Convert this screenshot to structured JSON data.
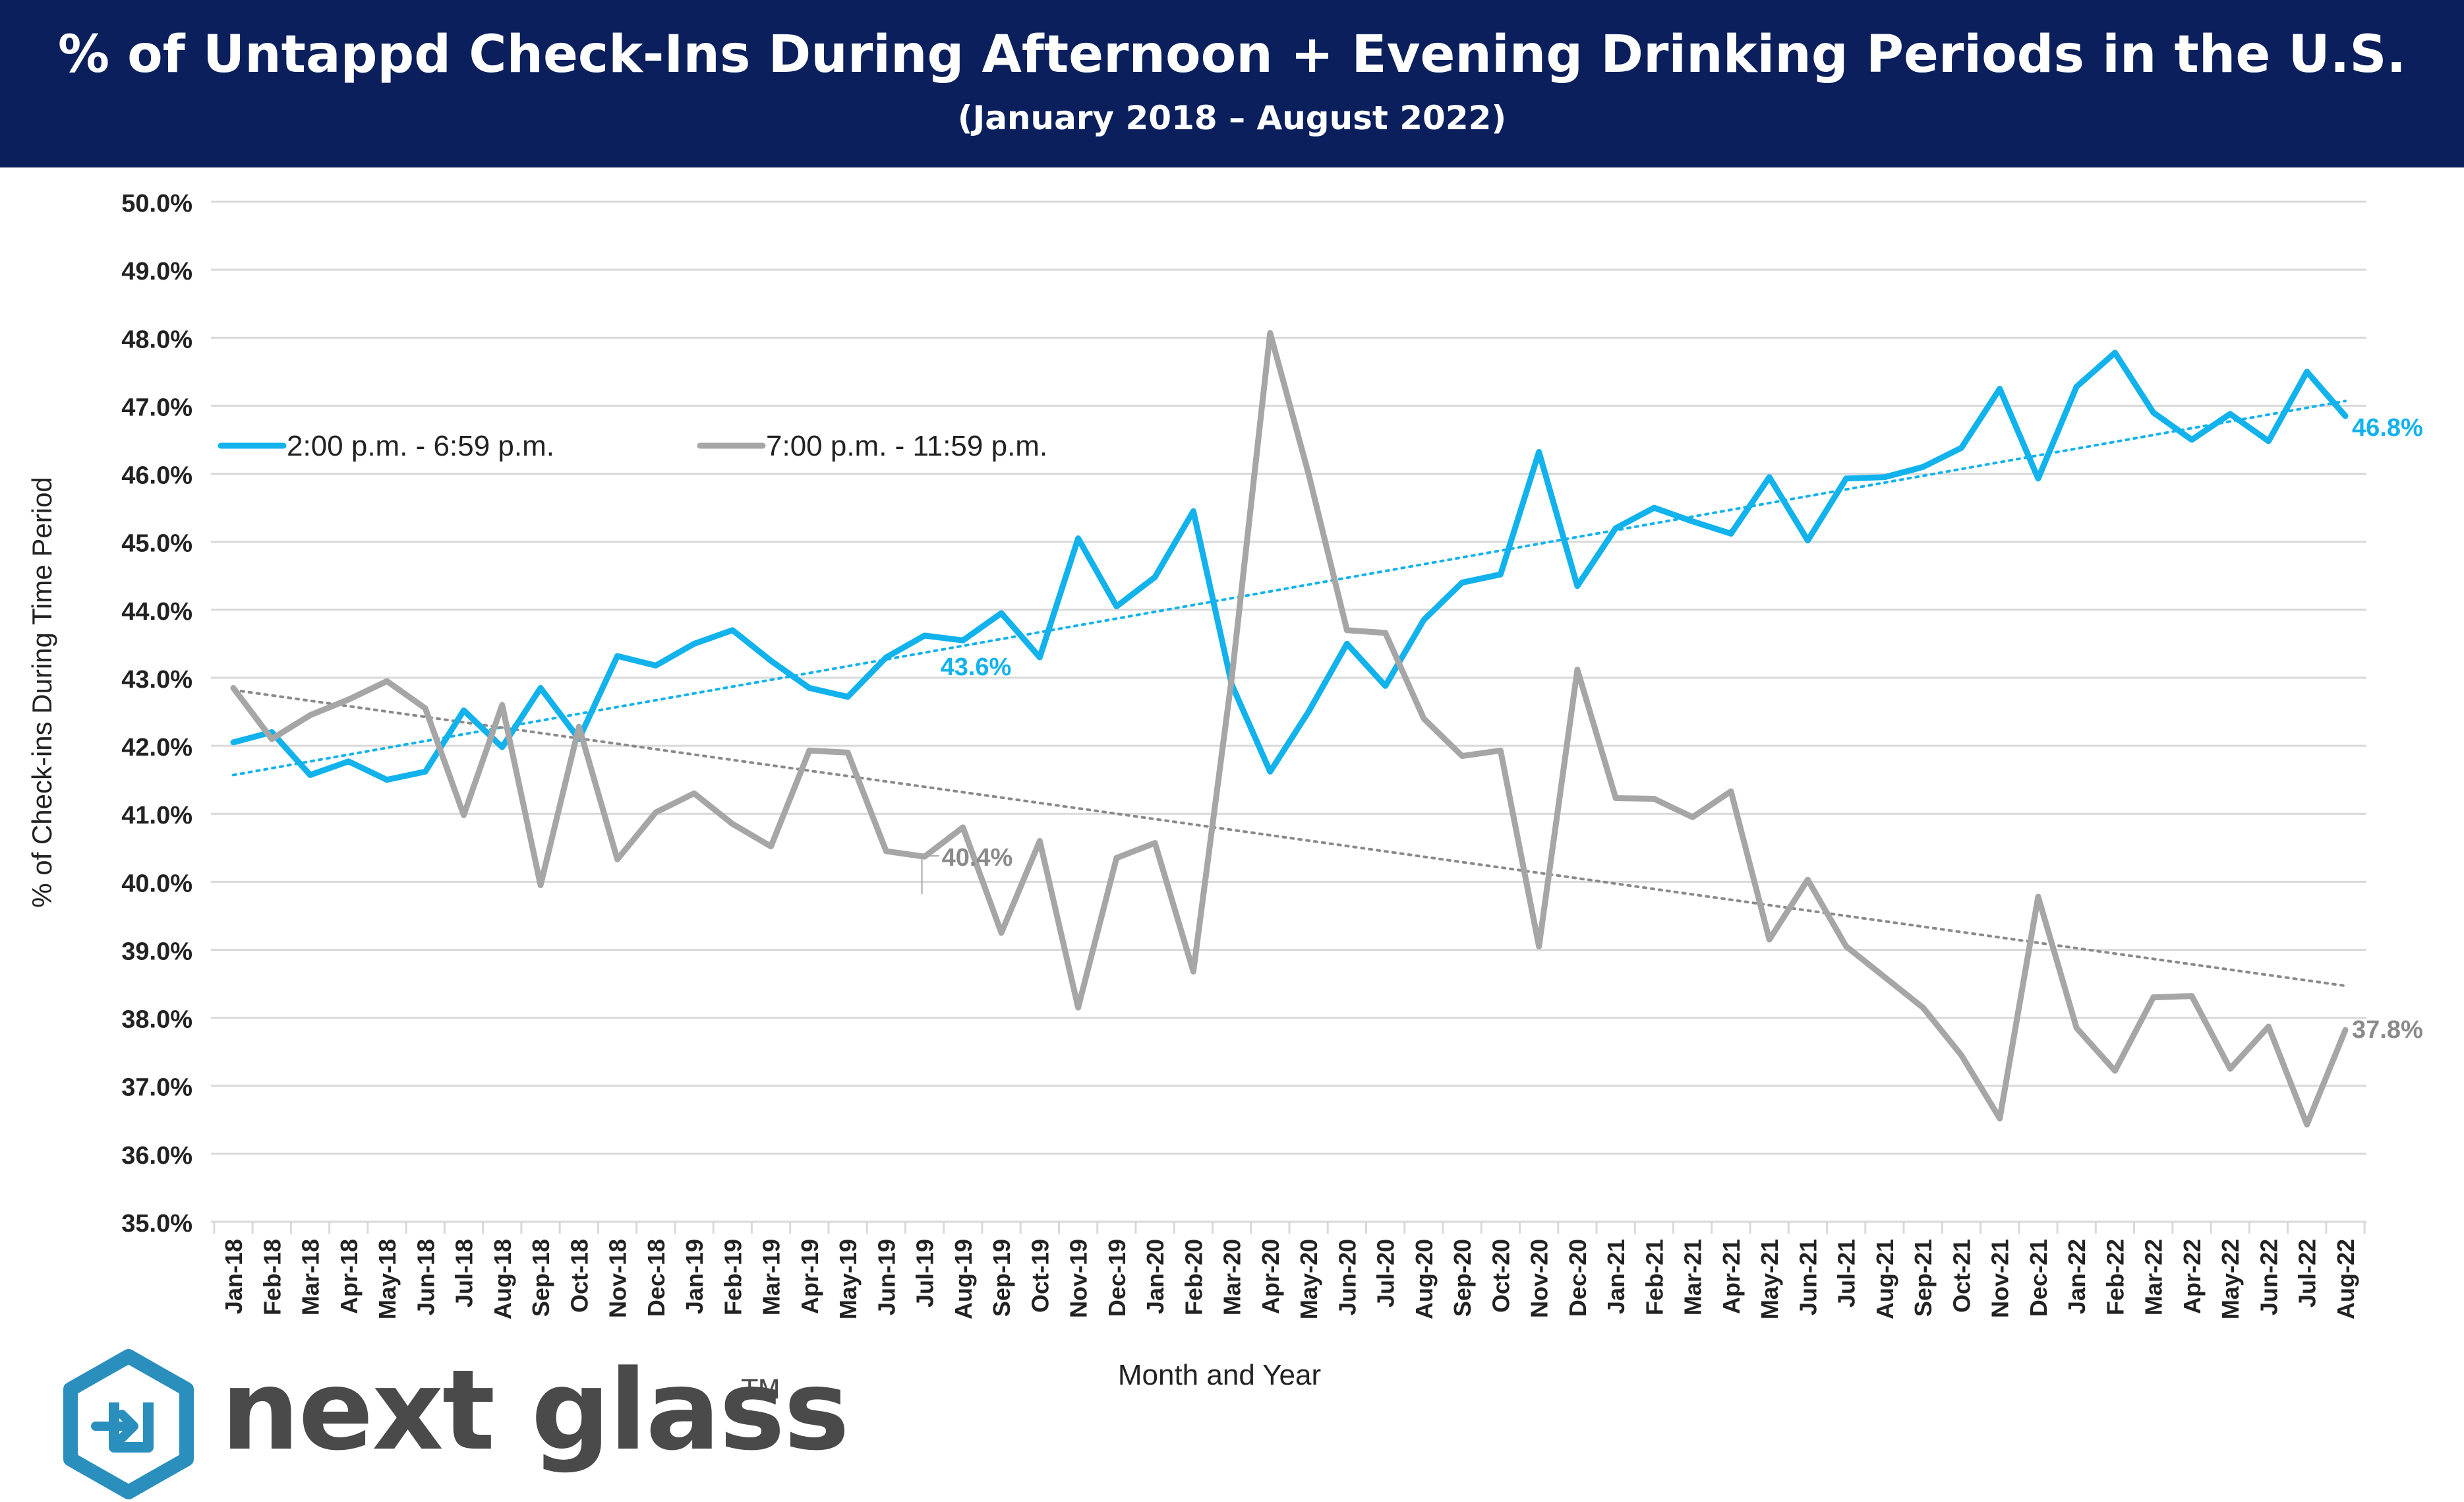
{
  "title": "% of Untappd Check-Ins During Afternoon + Evening Drinking Periods in the U.S.",
  "subtitle": "(January 2018 – August 2022)",
  "brand": {
    "name": "next glass",
    "tm": "TM",
    "icon": "next-glass-hexagon-logo"
  },
  "colors": {
    "header": "#0b1f5c",
    "afternoon": "#12b2ec",
    "evening": "#a6a6a6",
    "grid": "#d9d9d9"
  },
  "chart_data": {
    "type": "line",
    "xlabel": "Month and Year",
    "ylabel": "% of Check-ins During Time Period",
    "ylim": [
      35.0,
      50.0
    ],
    "yticks": [
      "35.0%",
      "36.0%",
      "37.0%",
      "38.0%",
      "39.0%",
      "40.0%",
      "41.0%",
      "42.0%",
      "43.0%",
      "44.0%",
      "45.0%",
      "46.0%",
      "47.0%",
      "48.0%",
      "49.0%",
      "50.0%"
    ],
    "grid": true,
    "legend_position": "top-left",
    "categories": [
      "Jan-18",
      "Feb-18",
      "Mar-18",
      "Apr-18",
      "May-18",
      "Jun-18",
      "Jul-18",
      "Aug-18",
      "Sep-18",
      "Oct-18",
      "Nov-18",
      "Dec-18",
      "Jan-19",
      "Feb-19",
      "Mar-19",
      "Apr-19",
      "May-19",
      "Jun-19",
      "Jul-19",
      "Aug-19",
      "Sep-19",
      "Oct-19",
      "Nov-19",
      "Dec-19",
      "Jan-20",
      "Feb-20",
      "Mar-20",
      "Apr-20",
      "May-20",
      "Jun-20",
      "Jul-20",
      "Aug-20",
      "Sep-20",
      "Oct-20",
      "Nov-20",
      "Dec-20",
      "Jan-21",
      "Feb-21",
      "Mar-21",
      "Apr-21",
      "May-21",
      "Jun-21",
      "Jul-21",
      "Aug-21",
      "Sep-21",
      "Oct-21",
      "Nov-21",
      "Dec-21",
      "Jan-22",
      "Feb-22",
      "Mar-22",
      "Apr-22",
      "May-22",
      "Jun-22",
      "Jul-22",
      "Aug-22"
    ],
    "series": [
      {
        "name": "2:00 p.m. - 6:59 p.m.",
        "color": "#12b2ec",
        "values": [
          42.05,
          42.2,
          41.57,
          41.77,
          41.5,
          41.62,
          42.52,
          41.98,
          42.85,
          42.1,
          43.32,
          43.18,
          43.5,
          43.7,
          43.25,
          42.85,
          42.72,
          43.3,
          43.62,
          43.55,
          43.95,
          43.3,
          45.05,
          44.05,
          44.48,
          45.45,
          42.9,
          41.62,
          42.5,
          43.5,
          42.88,
          43.85,
          44.4,
          44.52,
          46.32,
          44.35,
          45.2,
          45.5,
          45.3,
          45.12,
          45.95,
          45.02,
          45.93,
          45.95,
          46.1,
          46.38,
          47.25,
          45.93,
          47.28,
          47.78,
          46.9,
          46.5,
          46.88,
          46.48,
          47.5,
          46.85
        ]
      },
      {
        "name": "7:00 p.m. - 11:59 p.m.",
        "color": "#a6a6a6",
        "values": [
          42.85,
          42.1,
          42.45,
          42.68,
          42.95,
          42.55,
          40.98,
          42.6,
          39.95,
          42.28,
          40.33,
          41.02,
          41.3,
          40.85,
          40.52,
          41.93,
          41.9,
          40.45,
          40.37,
          40.8,
          39.25,
          40.6,
          38.15,
          40.35,
          40.57,
          38.68,
          43.0,
          48.07,
          46.0,
          43.7,
          43.66,
          42.4,
          41.85,
          41.93,
          39.05,
          43.12,
          41.23,
          41.22,
          40.95,
          41.33,
          39.15,
          40.03,
          39.05,
          38.6,
          38.15,
          37.45,
          36.52,
          39.78,
          37.85,
          37.22,
          38.3,
          38.32,
          37.25,
          37.87,
          36.43,
          37.82
        ]
      }
    ],
    "trendlines": [
      {
        "series": "2:00 p.m. - 6:59 p.m.",
        "start": 41.57,
        "end": 47.07
      },
      {
        "series": "7:00 p.m. - 11:59 p.m.",
        "start": 42.82,
        "end": 38.47
      }
    ],
    "annotations": [
      {
        "text": "43.6%",
        "series": "2:00 p.m. - 6:59 p.m.",
        "x": "Jul-19",
        "y": 43.6
      },
      {
        "text": "40.4%",
        "series": "7:00 p.m. - 11:59 p.m.",
        "x": "Jul-19",
        "y": 40.4
      },
      {
        "text": "46.8%",
        "series": "2:00 p.m. - 6:59 p.m.",
        "x": "Aug-22",
        "y": 46.85
      },
      {
        "text": "37.8%",
        "series": "7:00 p.m. - 11:59 p.m.",
        "x": "Aug-22",
        "y": 37.82
      }
    ]
  }
}
